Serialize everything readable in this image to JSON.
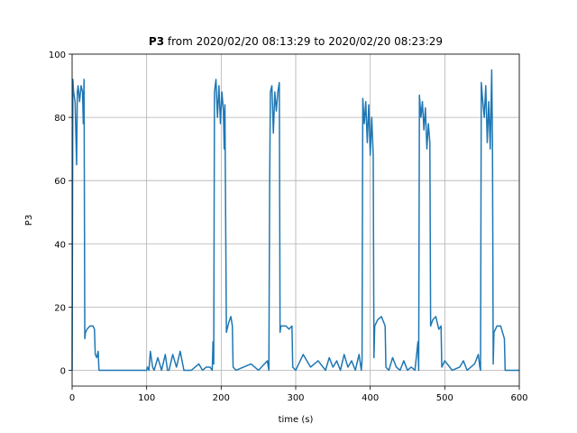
{
  "chart_data": {
    "type": "line",
    "title_bold": "P3",
    "title": "from 2020/02/20 08:13:29 to 2020/02/20 08:23:29",
    "xlabel": "time (s)",
    "ylabel": "P3",
    "color": "#1f77b4",
    "grid": true,
    "xlim": [
      0,
      600
    ],
    "xticks": [
      0,
      100,
      200,
      300,
      400,
      500,
      600
    ],
    "ylim": [
      -5,
      100
    ],
    "yticks": [
      0,
      20,
      40,
      60,
      80,
      100
    ],
    "x": [
      0,
      1,
      2,
      4,
      6,
      7,
      8,
      10,
      12,
      14,
      15,
      16,
      17,
      18,
      20,
      24,
      28,
      30,
      31,
      33,
      35,
      36,
      60,
      100,
      101,
      103,
      105,
      108,
      110,
      115,
      120,
      125,
      128,
      130,
      135,
      140,
      145,
      150,
      155,
      160,
      165,
      170,
      175,
      180,
      185,
      188,
      189,
      190,
      191,
      193,
      195,
      197,
      199,
      201,
      203,
      204,
      205,
      207,
      210,
      213,
      215,
      216,
      220,
      230,
      240,
      250,
      258,
      262,
      264,
      265,
      266,
      268,
      270,
      272,
      274,
      276,
      278,
      279,
      280,
      283,
      287,
      291,
      295,
      296,
      300,
      310,
      320,
      330,
      340,
      345,
      350,
      355,
      360,
      365,
      370,
      375,
      380,
      385,
      388,
      389,
      390,
      392,
      394,
      396,
      398,
      400,
      402,
      404,
      405,
      406,
      410,
      415,
      420,
      421,
      425,
      430,
      435,
      440,
      445,
      450,
      455,
      460,
      464,
      465,
      466,
      468,
      470,
      472,
      474,
      476,
      478,
      480,
      481,
      484,
      488,
      492,
      495,
      496,
      500,
      510,
      520,
      525,
      530,
      535,
      540,
      545,
      547,
      548,
      549,
      551,
      553,
      555,
      557,
      559,
      561,
      563,
      564,
      565,
      566,
      570,
      575,
      580,
      581,
      600
    ],
    "values": [
      0,
      92,
      88,
      85,
      65,
      88,
      90,
      85,
      90,
      88,
      78,
      92,
      10,
      12,
      13,
      14,
      14,
      13,
      5,
      4,
      6,
      0,
      0,
      0,
      1,
      0,
      6,
      1,
      0,
      4,
      0,
      5,
      0,
      0,
      5,
      1,
      6,
      0,
      0,
      0,
      1,
      2,
      0,
      1,
      1,
      0,
      9,
      2,
      88,
      92,
      80,
      90,
      78,
      88,
      82,
      70,
      84,
      12,
      15,
      17,
      14,
      1,
      0,
      1,
      2,
      0,
      2,
      3,
      0,
      58,
      88,
      90,
      75,
      88,
      82,
      88,
      91,
      12,
      14,
      14,
      14,
      13,
      14,
      1,
      0,
      5,
      1,
      3,
      0,
      4,
      1,
      3,
      0,
      5,
      1,
      3,
      0,
      5,
      0,
      3,
      86,
      78,
      85,
      72,
      84,
      68,
      80,
      68,
      4,
      14,
      16,
      17,
      14,
      1,
      0,
      4,
      1,
      0,
      3,
      0,
      1,
      0,
      9,
      0,
      87,
      80,
      85,
      76,
      83,
      70,
      78,
      72,
      14,
      16,
      17,
      13,
      14,
      1,
      3,
      0,
      1,
      3,
      0,
      1,
      2,
      5,
      1,
      0,
      91,
      85,
      80,
      90,
      72,
      85,
      70,
      95,
      72,
      2,
      12,
      14,
      14,
      10,
      0,
      0
    ]
  }
}
